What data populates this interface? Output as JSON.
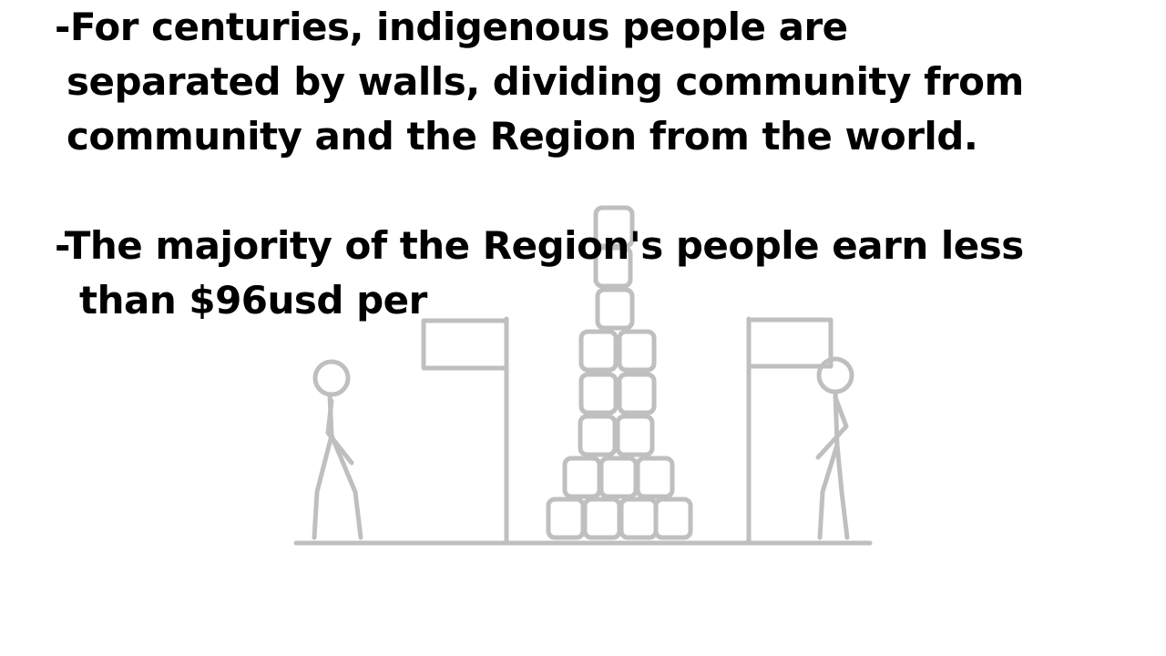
{
  "bullets": [
    {
      "lines": [
        "-For centuries, indigenous people are",
        "separated by walls, dividing community from",
        "community and the Region from the world."
      ]
    },
    {
      "lines": [
        "-The majority of the Region's people earn less",
        "than $96usd per"
      ]
    }
  ],
  "colors": {
    "text": "#000000",
    "drawing": "#bfbfbf",
    "background": "#ffffff"
  }
}
